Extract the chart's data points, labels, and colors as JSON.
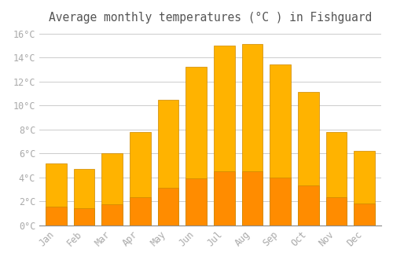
{
  "title": "Average monthly temperatures (°C ) in Fishguard",
  "months": [
    "Jan",
    "Feb",
    "Mar",
    "Apr",
    "May",
    "Jun",
    "Jul",
    "Aug",
    "Sep",
    "Oct",
    "Nov",
    "Dec"
  ],
  "values": [
    5.2,
    4.7,
    6.0,
    7.8,
    10.5,
    13.2,
    15.0,
    15.1,
    13.4,
    11.1,
    7.8,
    6.2
  ],
  "bar_color_top": "#FFB300",
  "bar_color_bottom": "#FF8C00",
  "bar_edge_color": "#CC8800",
  "background_color": "#FFFFFF",
  "plot_bg_color": "#FFFFFF",
  "grid_color": "#CCCCCC",
  "ylim": [
    0,
    16.5
  ],
  "yticks": [
    0,
    2,
    4,
    6,
    8,
    10,
    12,
    14,
    16
  ],
  "title_fontsize": 10.5,
  "tick_fontsize": 8.5,
  "tick_color": "#AAAAAA",
  "title_color": "#555555",
  "font_family": "monospace",
  "bar_width": 0.75
}
